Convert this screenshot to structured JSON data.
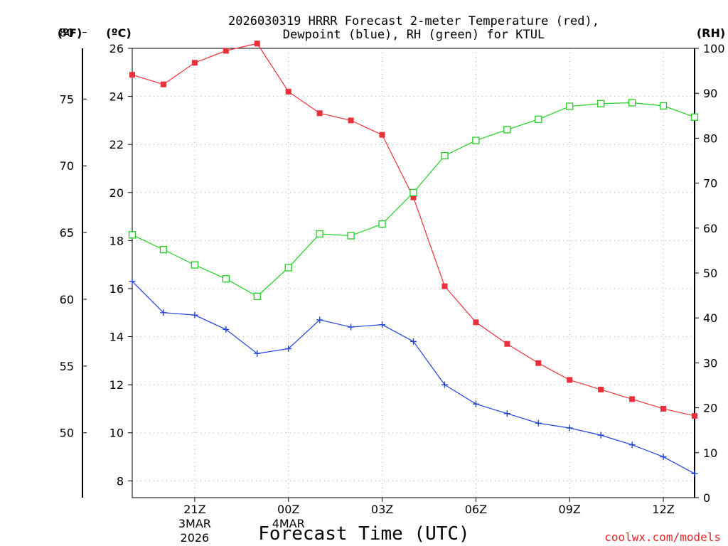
{
  "chart_data": {
    "type": "line",
    "title_lines": [
      "2026030319 HRRR Forecast 2-meter Temperature (red),",
      "Dewpoint (blue), RH (green) for KTUL"
    ],
    "xlabel": "Forecast Time (UTC)",
    "credit": "coolwx.com/models",
    "units": {
      "fahrenheit": "(ºF)",
      "celsius": "(ºC)",
      "rh": "(RH)"
    },
    "x_hours": [
      0,
      1,
      2,
      3,
      4,
      5,
      6,
      7,
      8,
      9,
      10,
      11,
      12,
      13,
      14,
      15,
      16,
      17,
      18
    ],
    "xlim": [
      0,
      18
    ],
    "x_ticks": [
      {
        "hour": 2,
        "label": "21Z",
        "sub": [
          "3MAR",
          "2026"
        ]
      },
      {
        "hour": 5,
        "label": "00Z",
        "sub": [
          "4MAR"
        ]
      },
      {
        "hour": 8,
        "label": "03Z",
        "sub": []
      },
      {
        "hour": 11,
        "label": "06Z",
        "sub": []
      },
      {
        "hour": 14,
        "label": "09Z",
        "sub": []
      },
      {
        "hour": 17,
        "label": "12Z",
        "sub": []
      }
    ],
    "celsius_axis": {
      "range": [
        7.3,
        26.0
      ],
      "ticks": [
        8,
        10,
        12,
        14,
        16,
        18,
        20,
        22,
        24,
        26
      ]
    },
    "fahrenheit_ticks": [
      50,
      55,
      60,
      65,
      70,
      75,
      80
    ],
    "rh_axis": {
      "range": [
        0,
        100
      ],
      "ticks": [
        0,
        10,
        20,
        30,
        40,
        50,
        60,
        70,
        80,
        90,
        100
      ]
    },
    "series": [
      {
        "name": "Temperature",
        "unit": "C",
        "color": "#e8313a",
        "marker": "filled-square",
        "values": [
          24.9,
          24.5,
          25.4,
          25.9,
          26.2,
          24.2,
          23.3,
          23.0,
          22.4,
          19.8,
          16.1,
          14.6,
          13.7,
          12.9,
          12.2,
          11.8,
          11.4,
          11.0,
          10.7
        ]
      },
      {
        "name": "Dewpoint",
        "unit": "C",
        "color": "#2342e0",
        "marker": "plus",
        "values": [
          16.3,
          15.0,
          14.9,
          14.3,
          13.3,
          13.5,
          14.7,
          14.4,
          14.5,
          13.8,
          12.0,
          11.2,
          10.8,
          10.4,
          10.2,
          9.9,
          9.5,
          9.0,
          8.3
        ]
      },
      {
        "name": "RH",
        "unit": "%",
        "color": "#22cc22",
        "marker": "open-square",
        "values": [
          58.5,
          55.2,
          51.8,
          48.7,
          44.8,
          51.2,
          58.7,
          58.3,
          60.9,
          67.9,
          76.1,
          79.5,
          81.9,
          84.2,
          87.1,
          87.7,
          87.9,
          87.2,
          84.7
        ]
      }
    ]
  }
}
